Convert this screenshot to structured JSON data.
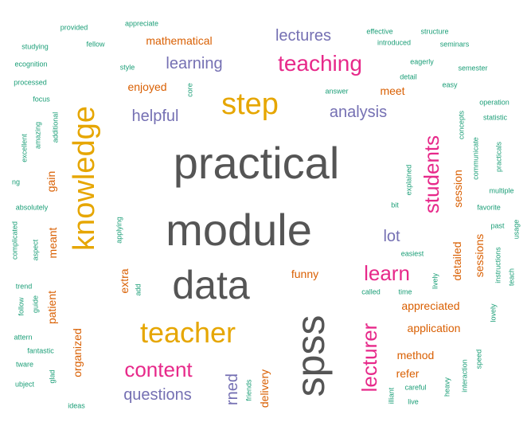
{
  "palette": {
    "gray": "#555555",
    "gold": "#E6A600",
    "pink": "#E7298A",
    "purple": "#7570B3",
    "orange": "#D95F02",
    "teal": "#1B9E77"
  },
  "words": [
    {
      "text": "practical",
      "color": "gray"
    },
    {
      "text": "module",
      "color": "gray"
    },
    {
      "text": "data",
      "color": "gray"
    },
    {
      "text": "spss",
      "color": "gray"
    },
    {
      "text": "knowledge",
      "color": "gold"
    },
    {
      "text": "step",
      "color": "gold"
    },
    {
      "text": "teacher",
      "color": "gold"
    },
    {
      "text": "teaching",
      "color": "pink"
    },
    {
      "text": "students",
      "color": "pink"
    },
    {
      "text": "learn",
      "color": "pink"
    },
    {
      "text": "lecturer",
      "color": "pink"
    },
    {
      "text": "content",
      "color": "pink"
    },
    {
      "text": "lectures",
      "color": "purple"
    },
    {
      "text": "learning",
      "color": "purple"
    },
    {
      "text": "helpful",
      "color": "purple"
    },
    {
      "text": "analysis",
      "color": "purple"
    },
    {
      "text": "lot",
      "color": "purple"
    },
    {
      "text": "questions",
      "color": "purple"
    },
    {
      "text": "rned",
      "color": "purple"
    },
    {
      "text": "mathematical",
      "color": "orange"
    },
    {
      "text": "enjoyed",
      "color": "orange"
    },
    {
      "text": "meet",
      "color": "orange"
    },
    {
      "text": "session",
      "color": "orange"
    },
    {
      "text": "sessions",
      "color": "orange"
    },
    {
      "text": "detailed",
      "color": "orange"
    },
    {
      "text": "funny",
      "color": "orange"
    },
    {
      "text": "appreciated",
      "color": "orange"
    },
    {
      "text": "application",
      "color": "orange"
    },
    {
      "text": "method",
      "color": "orange"
    },
    {
      "text": "refer",
      "color": "orange"
    },
    {
      "text": "gain",
      "color": "orange"
    },
    {
      "text": "meant",
      "color": "orange"
    },
    {
      "text": "patient",
      "color": "orange"
    },
    {
      "text": "extra",
      "color": "orange"
    },
    {
      "text": "organized",
      "color": "orange"
    },
    {
      "text": "delivery",
      "color": "orange"
    },
    {
      "text": "effective",
      "color": "teal"
    },
    {
      "text": "structure",
      "color": "teal"
    },
    {
      "text": "introduced",
      "color": "teal"
    },
    {
      "text": "seminars",
      "color": "teal"
    },
    {
      "text": "provided",
      "color": "teal"
    },
    {
      "text": "appreciate",
      "color": "teal"
    },
    {
      "text": "studying",
      "color": "teal"
    },
    {
      "text": "fellow",
      "color": "teal"
    },
    {
      "text": "ecognition",
      "color": "teal"
    },
    {
      "text": "style",
      "color": "teal"
    },
    {
      "text": "eagerly",
      "color": "teal"
    },
    {
      "text": "semester",
      "color": "teal"
    },
    {
      "text": "detail",
      "color": "teal"
    },
    {
      "text": "processed",
      "color": "teal"
    },
    {
      "text": "core",
      "color": "teal"
    },
    {
      "text": "answer",
      "color": "teal"
    },
    {
      "text": "easy",
      "color": "teal"
    },
    {
      "text": "focus",
      "color": "teal"
    },
    {
      "text": "operation",
      "color": "teal"
    },
    {
      "text": "concepts",
      "color": "teal"
    },
    {
      "text": "statistic",
      "color": "teal"
    },
    {
      "text": "amazing",
      "color": "teal"
    },
    {
      "text": "additional",
      "color": "teal"
    },
    {
      "text": "excellent",
      "color": "teal"
    },
    {
      "text": "communicate",
      "color": "teal"
    },
    {
      "text": "practicals",
      "color": "teal"
    },
    {
      "text": "explained",
      "color": "teal"
    },
    {
      "text": "multiple",
      "color": "teal"
    },
    {
      "text": "ng",
      "color": "teal"
    },
    {
      "text": "bit",
      "color": "teal"
    },
    {
      "text": "favorite",
      "color": "teal"
    },
    {
      "text": "absolutely",
      "color": "teal"
    },
    {
      "text": "applying",
      "color": "teal"
    },
    {
      "text": "past",
      "color": "teal"
    },
    {
      "text": "usage",
      "color": "teal"
    },
    {
      "text": "complicated",
      "color": "teal"
    },
    {
      "text": "aspect",
      "color": "teal"
    },
    {
      "text": "easiest",
      "color": "teal"
    },
    {
      "text": "instructions",
      "color": "teal"
    },
    {
      "text": "teach",
      "color": "teal"
    },
    {
      "text": "lively",
      "color": "teal"
    },
    {
      "text": "add",
      "color": "teal"
    },
    {
      "text": "called",
      "color": "teal"
    },
    {
      "text": "time",
      "color": "teal"
    },
    {
      "text": "trend",
      "color": "teal"
    },
    {
      "text": "follow",
      "color": "teal"
    },
    {
      "text": "guide",
      "color": "teal"
    },
    {
      "text": "lovely",
      "color": "teal"
    },
    {
      "text": "attern",
      "color": "teal"
    },
    {
      "text": "fantastic",
      "color": "teal"
    },
    {
      "text": "speed",
      "color": "teal"
    },
    {
      "text": "tware",
      "color": "teal"
    },
    {
      "text": "glad",
      "color": "teal"
    },
    {
      "text": "heavy",
      "color": "teal"
    },
    {
      "text": "interaction",
      "color": "teal"
    },
    {
      "text": "ubject",
      "color": "teal"
    },
    {
      "text": "friends",
      "color": "teal"
    },
    {
      "text": "careful",
      "color": "teal"
    },
    {
      "text": "illiant",
      "color": "teal"
    },
    {
      "text": "live",
      "color": "teal"
    },
    {
      "text": "ideas",
      "color": "teal"
    }
  ]
}
